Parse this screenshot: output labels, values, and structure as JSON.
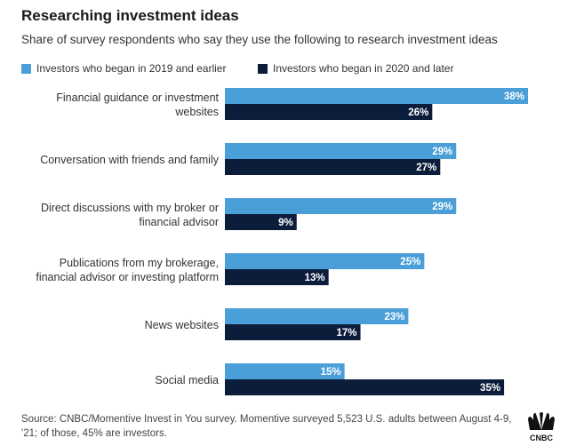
{
  "title": "Researching investment ideas",
  "subtitle": "Share of survey respondents who say they use the following to research investment ideas",
  "source": "Source: CNBC/Momentive Invest in You survey. Momentive surveyed 5,523 U.S. adults between August 4-9, '21; of those, 45% are investors.",
  "logo_text": "CNBC",
  "colors": {
    "series1": "#4a9fd8",
    "series2": "#0c1d3c"
  },
  "chart_data": {
    "type": "bar",
    "orientation": "horizontal",
    "categories": [
      [
        "Financial guidance or investment",
        "websites"
      ],
      [
        "Conversation with friends and family"
      ],
      [
        "Direct discussions with my broker or",
        "financial advisor"
      ],
      [
        "Publications from my brokerage,",
        "financial advisor or investing platform"
      ],
      [
        "News websites"
      ],
      [
        "Social media"
      ]
    ],
    "series": [
      {
        "name": "Investors who began in 2019 and earlier",
        "values": [
          38,
          29,
          29,
          25,
          23,
          15
        ],
        "color": "#4a9fd8"
      },
      {
        "name": "Investors who began in 2020 and later",
        "values": [
          26,
          27,
          9,
          13,
          17,
          35
        ],
        "color": "#0c1d3c"
      }
    ],
    "value_suffix": "%",
    "xlim": [
      0,
      38
    ],
    "legend_position": "top-left"
  }
}
